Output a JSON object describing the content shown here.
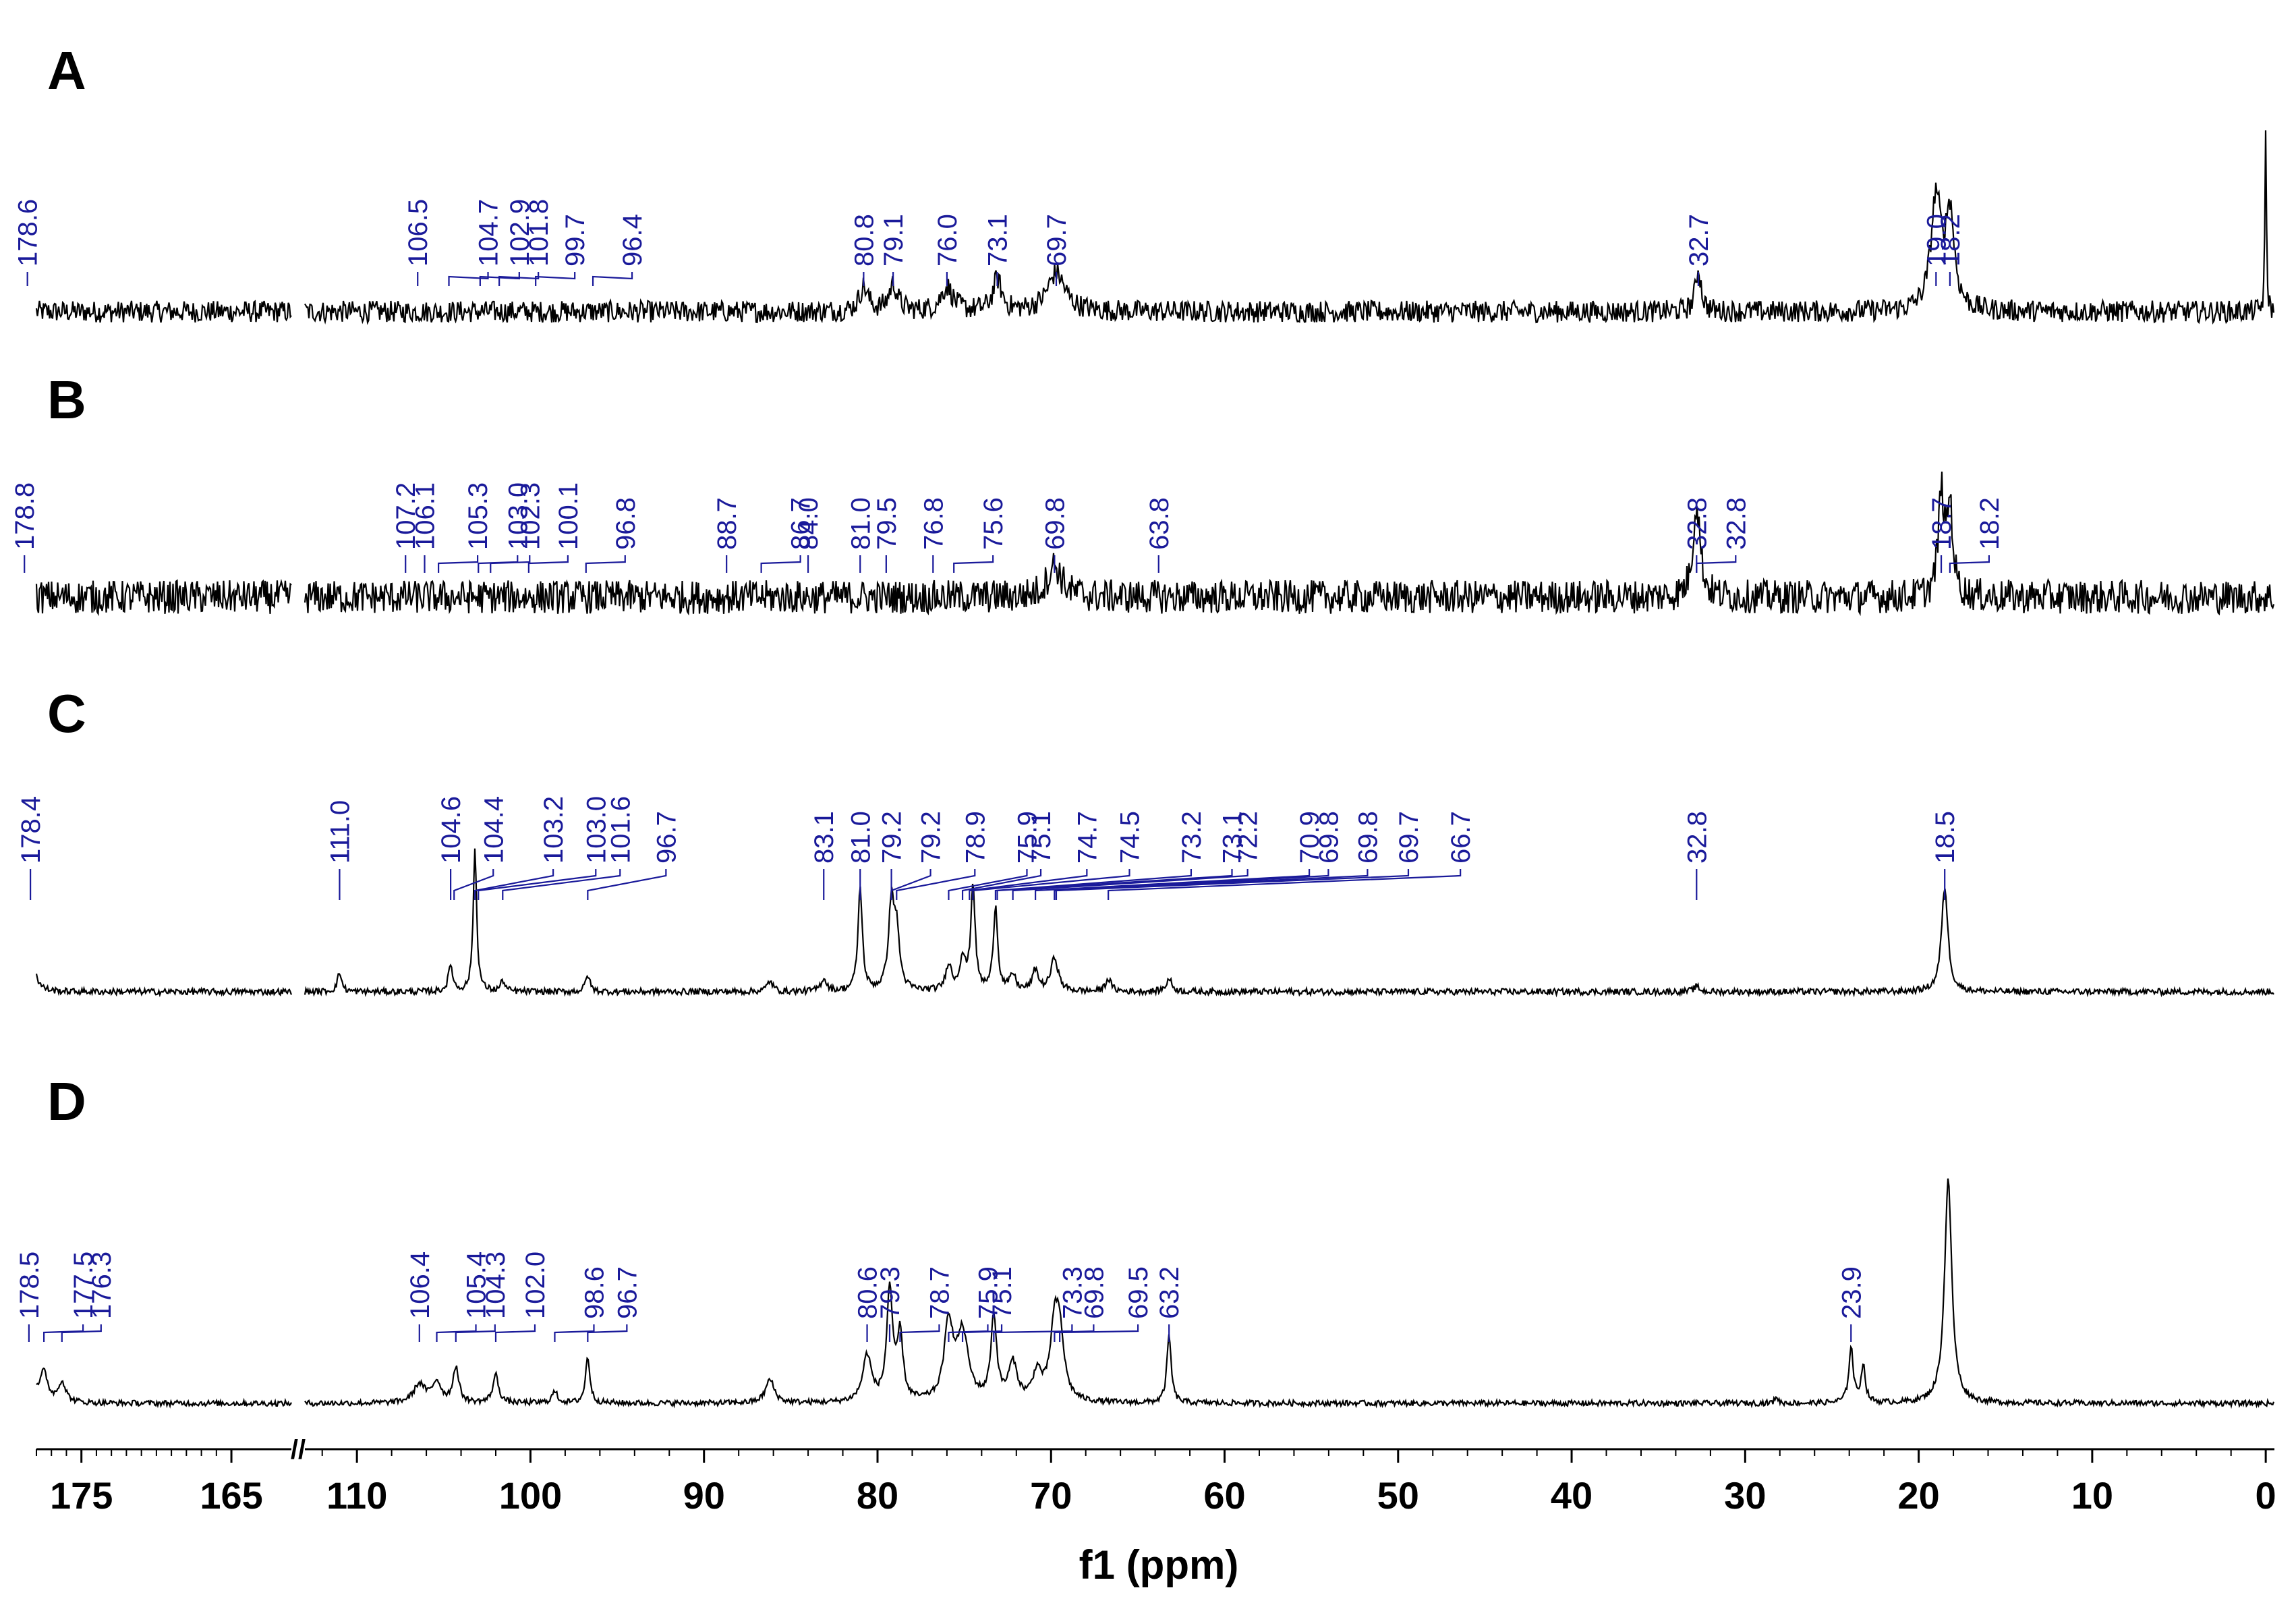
{
  "chart_data": {
    "type": "line",
    "title": "",
    "xlabel": "f1 (ppm)",
    "ylabel": "",
    "x_direction": "descending",
    "axis_break": {
      "from": 165,
      "to": 112
    },
    "x_segments": [
      {
        "range": [
          178,
          161
        ],
        "ticks": [
          175,
          165
        ]
      },
      {
        "range": [
          113,
          -0.5
        ],
        "ticks": [
          110,
          100,
          90,
          80,
          70,
          60,
          50,
          40,
          30,
          20,
          10,
          0
        ]
      }
    ],
    "break_symbol": "//",
    "panels": [
      {
        "name": "A",
        "noise": 0.09,
        "peaks": [
          {
            "ppm": 19.0,
            "height": 0.92,
            "width": 0.35
          },
          {
            "ppm": 18.2,
            "height": 0.78,
            "width": 0.3
          },
          {
            "ppm": 0.0,
            "height": 1.45,
            "width": 0.05
          },
          {
            "ppm": 32.7,
            "height": 0.35,
            "width": 0.2
          },
          {
            "ppm": 69.7,
            "height": 0.32,
            "width": 0.6
          },
          {
            "ppm": 73.1,
            "height": 0.26,
            "width": 0.3
          },
          {
            "ppm": 76.0,
            "height": 0.2,
            "width": 0.4
          },
          {
            "ppm": 79.1,
            "height": 0.22,
            "width": 0.3
          },
          {
            "ppm": 80.8,
            "height": 0.2,
            "width": 0.3
          }
        ],
        "labels": [
          {
            "ppm": 178.6,
            "text": "178.6"
          },
          {
            "ppm": 106.5,
            "text": "106.5"
          },
          {
            "ppm": 104.7,
            "text": "104.7"
          },
          {
            "ppm": 102.9,
            "text": "102.9"
          },
          {
            "ppm": 101.8,
            "text": "101.8"
          },
          {
            "ppm": 99.7,
            "text": "99.7"
          },
          {
            "ppm": 96.4,
            "text": "96.4"
          },
          {
            "ppm": 80.8,
            "text": "80.8"
          },
          {
            "ppm": 79.1,
            "text": "79.1"
          },
          {
            "ppm": 76.0,
            "text": "76.0"
          },
          {
            "ppm": 73.1,
            "text": "73.1"
          },
          {
            "ppm": 69.7,
            "text": "69.7"
          },
          {
            "ppm": 32.7,
            "text": "32.7"
          },
          {
            "ppm": 19.0,
            "text": "19.0"
          },
          {
            "ppm": 18.2,
            "text": "18.2"
          }
        ]
      },
      {
        "name": "B",
        "noise": 0.16,
        "peaks": [
          {
            "ppm": 32.8,
            "height": 0.9,
            "width": 0.25
          },
          {
            "ppm": 18.7,
            "height": 0.95,
            "width": 0.2
          },
          {
            "ppm": 18.2,
            "height": 0.85,
            "width": 0.2
          },
          {
            "ppm": 69.8,
            "height": 0.3,
            "width": 0.5
          }
        ],
        "labels": [
          {
            "ppm": 178.8,
            "text": "178.8"
          },
          {
            "ppm": 107.2,
            "text": "107.2"
          },
          {
            "ppm": 106.1,
            "text": "106.1"
          },
          {
            "ppm": 105.3,
            "text": "105.3"
          },
          {
            "ppm": 103.0,
            "text": "103.0"
          },
          {
            "ppm": 102.3,
            "text": "102.3"
          },
          {
            "ppm": 100.1,
            "text": "100.1"
          },
          {
            "ppm": 96.8,
            "text": "96.8"
          },
          {
            "ppm": 88.7,
            "text": "88.7"
          },
          {
            "ppm": 86.7,
            "text": "86.7"
          },
          {
            "ppm": 84.0,
            "text": "84.0"
          },
          {
            "ppm": 81.0,
            "text": "81.0"
          },
          {
            "ppm": 79.5,
            "text": "79.5"
          },
          {
            "ppm": 76.8,
            "text": "76.8"
          },
          {
            "ppm": 75.6,
            "text": "75.6"
          },
          {
            "ppm": 69.8,
            "text": "69.8"
          },
          {
            "ppm": 63.8,
            "text": "63.8"
          },
          {
            "ppm": 32.8,
            "text": "32.8"
          },
          {
            "ppm": 32.8,
            "text": "32.8"
          },
          {
            "ppm": 18.7,
            "text": "18.7"
          },
          {
            "ppm": 18.2,
            "text": "18.2"
          }
        ]
      },
      {
        "name": "C",
        "noise": 0.03,
        "peaks": [
          {
            "ppm": 178.4,
            "height": 0.58,
            "width": 0.25
          },
          {
            "ppm": 111.0,
            "height": 0.18,
            "width": 0.15
          },
          {
            "ppm": 104.6,
            "height": 0.25,
            "width": 0.15
          },
          {
            "ppm": 103.2,
            "height": 1.35,
            "width": 0.12
          },
          {
            "ppm": 101.6,
            "height": 0.1,
            "width": 0.15
          },
          {
            "ppm": 96.7,
            "height": 0.16,
            "width": 0.15
          },
          {
            "ppm": 86.2,
            "height": 0.1,
            "width": 0.2
          },
          {
            "ppm": 83.1,
            "height": 0.12,
            "width": 0.2
          },
          {
            "ppm": 81.0,
            "height": 0.98,
            "width": 0.15
          },
          {
            "ppm": 79.2,
            "height": 0.8,
            "width": 0.2
          },
          {
            "ppm": 78.9,
            "height": 0.5,
            "width": 0.2
          },
          {
            "ppm": 75.9,
            "height": 0.25,
            "width": 0.2
          },
          {
            "ppm": 75.1,
            "height": 0.3,
            "width": 0.2
          },
          {
            "ppm": 74.5,
            "height": 1.0,
            "width": 0.15
          },
          {
            "ppm": 73.2,
            "height": 0.8,
            "width": 0.15
          },
          {
            "ppm": 72.2,
            "height": 0.15,
            "width": 0.2
          },
          {
            "ppm": 70.9,
            "height": 0.2,
            "width": 0.2
          },
          {
            "ppm": 69.8,
            "height": 0.32,
            "width": 0.25
          },
          {
            "ppm": 66.7,
            "height": 0.12,
            "width": 0.2
          },
          {
            "ppm": 63.2,
            "height": 0.12,
            "width": 0.2
          },
          {
            "ppm": 32.8,
            "height": 0.05,
            "width": 0.2
          },
          {
            "ppm": 18.5,
            "height": 1.0,
            "width": 0.22
          }
        ],
        "labels": [
          {
            "ppm": 178.4,
            "text": "178.4"
          },
          {
            "ppm": 111.0,
            "text": "111.0"
          },
          {
            "ppm": 104.6,
            "text": "104.6"
          },
          {
            "ppm": 104.4,
            "text": "104.4"
          },
          {
            "ppm": 103.2,
            "text": "103.2"
          },
          {
            "ppm": 103.0,
            "text": "103.0"
          },
          {
            "ppm": 101.6,
            "text": "101.6"
          },
          {
            "ppm": 96.7,
            "text": "96.7"
          },
          {
            "ppm": 83.1,
            "text": "83.1"
          },
          {
            "ppm": 81.0,
            "text": "81.0"
          },
          {
            "ppm": 79.2,
            "text": "79.2"
          },
          {
            "ppm": 79.2,
            "text": "79.2"
          },
          {
            "ppm": 78.9,
            "text": "78.9"
          },
          {
            "ppm": 75.9,
            "text": "75.9"
          },
          {
            "ppm": 75.1,
            "text": "75.1"
          },
          {
            "ppm": 74.7,
            "text": "74.7"
          },
          {
            "ppm": 74.5,
            "text": "74.5"
          },
          {
            "ppm": 73.2,
            "text": "73.2"
          },
          {
            "ppm": 73.1,
            "text": "73.1"
          },
          {
            "ppm": 72.2,
            "text": "72.2"
          },
          {
            "ppm": 70.9,
            "text": "70.9"
          },
          {
            "ppm": 69.8,
            "text": "69.8"
          },
          {
            "ppm": 69.8,
            "text": "69.8"
          },
          {
            "ppm": 69.7,
            "text": "69.7"
          },
          {
            "ppm": 66.7,
            "text": "66.7"
          },
          {
            "ppm": 32.8,
            "text": "32.8"
          },
          {
            "ppm": 18.5,
            "text": "18.5"
          }
        ]
      },
      {
        "name": "D",
        "noise": 0.03,
        "peaks": [
          {
            "ppm": 178.5,
            "height": 0.4,
            "width": 0.35
          },
          {
            "ppm": 177.5,
            "height": 0.3,
            "width": 0.3
          },
          {
            "ppm": 176.3,
            "height": 0.22,
            "width": 0.3
          },
          {
            "ppm": 106.4,
            "height": 0.2,
            "width": 0.4
          },
          {
            "ppm": 105.4,
            "height": 0.22,
            "width": 0.3
          },
          {
            "ppm": 104.3,
            "height": 0.38,
            "width": 0.2
          },
          {
            "ppm": 102.0,
            "height": 0.3,
            "width": 0.2
          },
          {
            "ppm": 98.6,
            "height": 0.12,
            "width": 0.2
          },
          {
            "ppm": 96.7,
            "height": 0.5,
            "width": 0.15
          },
          {
            "ppm": 86.2,
            "height": 0.25,
            "width": 0.3
          },
          {
            "ppm": 80.6,
            "height": 0.5,
            "width": 0.3
          },
          {
            "ppm": 79.3,
            "height": 1.2,
            "width": 0.2
          },
          {
            "ppm": 78.7,
            "height": 0.7,
            "width": 0.2
          },
          {
            "ppm": 75.9,
            "height": 0.82,
            "width": 0.3
          },
          {
            "ppm": 75.1,
            "height": 0.72,
            "width": 0.4
          },
          {
            "ppm": 73.3,
            "height": 0.9,
            "width": 0.2
          },
          {
            "ppm": 72.2,
            "height": 0.4,
            "width": 0.3
          },
          {
            "ppm": 70.8,
            "height": 0.3,
            "width": 0.3
          },
          {
            "ppm": 69.8,
            "height": 0.72,
            "width": 0.3
          },
          {
            "ppm": 69.5,
            "height": 0.62,
            "width": 0.3
          },
          {
            "ppm": 63.2,
            "height": 0.72,
            "width": 0.15
          },
          {
            "ppm": 23.9,
            "height": 0.6,
            "width": 0.15
          },
          {
            "ppm": 23.2,
            "height": 0.4,
            "width": 0.15
          },
          {
            "ppm": 18.3,
            "height": 2.4,
            "width": 0.25
          },
          {
            "ppm": 28.2,
            "height": 0.08,
            "width": 0.1
          }
        ],
        "labels": [
          {
            "ppm": 178.5,
            "text": "178.5"
          },
          {
            "ppm": 177.5,
            "text": "177.5"
          },
          {
            "ppm": 176.3,
            "text": "176.3"
          },
          {
            "ppm": 106.4,
            "text": "106.4"
          },
          {
            "ppm": 105.4,
            "text": "105.4"
          },
          {
            "ppm": 104.3,
            "text": "104.3"
          },
          {
            "ppm": 102.0,
            "text": "102.0"
          },
          {
            "ppm": 98.6,
            "text": "98.6"
          },
          {
            "ppm": 96.7,
            "text": "96.7"
          },
          {
            "ppm": 80.6,
            "text": "80.6"
          },
          {
            "ppm": 79.3,
            "text": "79.3"
          },
          {
            "ppm": 78.7,
            "text": "78.7"
          },
          {
            "ppm": 75.9,
            "text": "75.9"
          },
          {
            "ppm": 75.1,
            "text": "75.1"
          },
          {
            "ppm": 73.3,
            "text": "73.3"
          },
          {
            "ppm": 69.8,
            "text": "69.8"
          },
          {
            "ppm": 69.5,
            "text": "69.5"
          },
          {
            "ppm": 63.2,
            "text": "63.2"
          },
          {
            "ppm": 23.9,
            "text": "23.9"
          }
        ]
      }
    ]
  }
}
